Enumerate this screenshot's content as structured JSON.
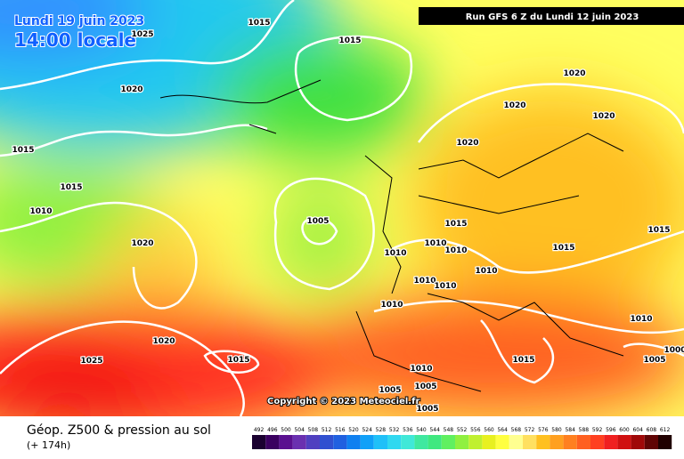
{
  "header": {
    "date": "Lundi 19 juin 2023",
    "time": "14:00 locale",
    "run": "Run GFS 6 Z du Lundi 12 juin 2023"
  },
  "copyright": "Copyright © 2023 Meteociel.fr",
  "footer": {
    "title": "Géop. Z500 & pression au sol",
    "lead": "(+ 174h)"
  },
  "scale": {
    "values": [
      492,
      496,
      500,
      504,
      508,
      512,
      516,
      520,
      524,
      528,
      532,
      536,
      540,
      544,
      548,
      552,
      556,
      560,
      564,
      568,
      572,
      576,
      580,
      584,
      588,
      592,
      596,
      600,
      604,
      608,
      612
    ],
    "colors": [
      "#1a0030",
      "#3a0060",
      "#5a1090",
      "#6a30b0",
      "#5040c0",
      "#3050d0",
      "#2060e0",
      "#1080f0",
      "#10a0f8",
      "#20c0f8",
      "#30d8f0",
      "#40e8d8",
      "#40e8a0",
      "#40e880",
      "#60f060",
      "#90f040",
      "#c0f030",
      "#e8f020",
      "#ffff40",
      "#ffff90",
      "#ffe060",
      "#ffc020",
      "#ffa020",
      "#ff8020",
      "#ff6020",
      "#ff4020",
      "#f02020",
      "#d01010",
      "#a00808",
      "#600404",
      "#200000"
    ]
  },
  "isobars": [
    "1015",
    "1025",
    "1015",
    "1020",
    "1020",
    "1020",
    "1020",
    "1015",
    "1020",
    "1015",
    "1010",
    "1005",
    "1015",
    "1020",
    "1010",
    "1010",
    "1015",
    "1015",
    "1010",
    "1010",
    "1010",
    "1010",
    "1010",
    "1010",
    "1020",
    "1000",
    "1025",
    "1015",
    "1015",
    "1005",
    "1010",
    "1005",
    "1005",
    "1005"
  ]
}
